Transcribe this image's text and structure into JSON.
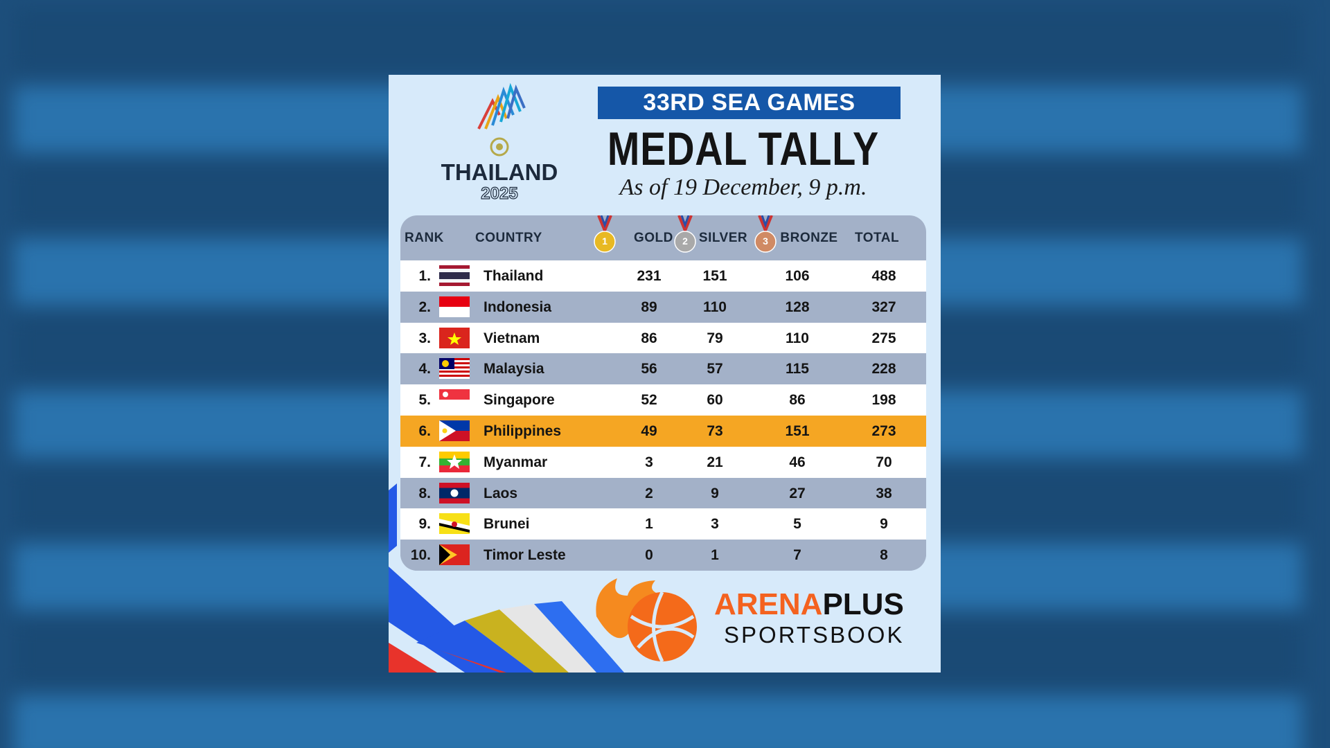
{
  "logo": {
    "name": "THAILAND",
    "year": "2025"
  },
  "header": {
    "banner": "33RD SEA GAMES",
    "title": "MEDAL TALLY",
    "subtitle": "As of 19 December, 9 p.m."
  },
  "table": {
    "columns": [
      "RANK",
      "COUNTRY",
      "GOLD",
      "SILVER",
      "BRONZE",
      "TOTAL"
    ],
    "medals": [
      "1",
      "2",
      "3"
    ],
    "rows": [
      [
        "1.",
        "Thailand",
        231,
        151,
        106,
        488
      ],
      [
        "2.",
        "Indonesia",
        89,
        110,
        128,
        327
      ],
      [
        "3.",
        "Vietnam",
        86,
        79,
        110,
        275
      ],
      [
        "4.",
        "Malaysia",
        56,
        57,
        115,
        228
      ],
      [
        "5.",
        "Singapore",
        52,
        60,
        86,
        198
      ],
      [
        "6.",
        "Philippines",
        49,
        73,
        151,
        273
      ],
      [
        "7.",
        "Myanmar",
        3,
        21,
        46,
        70
      ],
      [
        "8.",
        "Laos",
        2,
        9,
        27,
        38
      ],
      [
        "9.",
        "Brunei",
        1,
        3,
        5,
        9
      ],
      [
        "10.",
        "Timor Leste",
        0,
        1,
        7,
        8
      ]
    ]
  },
  "sponsor": {
    "brand_a": "ARENA",
    "brand_b": "PLUS",
    "tagline": "SPORTSBOOK"
  }
}
